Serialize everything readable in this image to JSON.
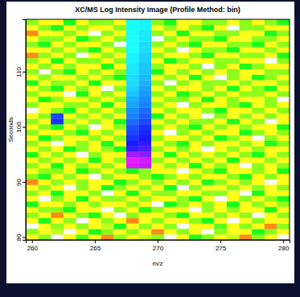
{
  "chart_data": {
    "type": "heatmap",
    "title": "XC/MS Log Intensity Image (Profile Method: bin)",
    "x_label": "m/z",
    "y_label": "Seconds",
    "x": [
      260,
      261,
      262,
      263,
      264,
      265,
      266,
      267,
      268,
      269,
      270,
      271,
      272,
      273,
      274,
      275,
      276,
      277,
      278,
      279,
      280
    ],
    "y": [
      80,
      81,
      82,
      83,
      84,
      85,
      86,
      87,
      88,
      89,
      90,
      91,
      92,
      93,
      94,
      95,
      96,
      97,
      98,
      99,
      100,
      101,
      102,
      103,
      104,
      105,
      106,
      107,
      108,
      109,
      110,
      111,
      112,
      113,
      114,
      115,
      116,
      117,
      118,
      119
    ],
    "cells": [
      [
        2,
        3,
        null,
        2,
        3.5,
        2,
        1,
        3,
        2,
        2.5,
        3,
        null,
        2,
        4,
        3,
        2,
        2.5,
        1,
        3,
        2,
        null
      ],
      [
        3,
        2,
        2.5,
        null,
        2,
        4,
        3,
        2,
        3,
        2,
        1,
        2,
        3,
        2,
        null,
        3,
        2,
        2,
        4,
        3,
        2
      ],
      [
        null,
        2,
        3,
        2,
        3,
        2,
        2.5,
        4,
        2,
        3,
        2,
        3,
        null,
        2,
        2,
        3.5,
        2,
        3,
        2,
        1,
        3
      ],
      [
        2,
        4,
        2,
        3,
        null,
        2,
        3,
        2,
        1,
        2,
        3,
        2,
        2,
        3,
        4,
        2,
        null,
        2,
        3,
        2,
        2
      ],
      [
        3,
        2,
        1,
        2,
        3,
        4,
        2,
        null,
        3,
        2,
        2,
        3,
        4,
        2,
        2,
        3,
        2,
        3,
        null,
        2,
        3
      ],
      [
        2,
        3,
        3,
        4,
        2,
        2,
        null,
        3,
        2,
        4,
        3,
        2,
        2,
        null,
        3,
        2,
        3,
        2,
        2,
        4,
        2
      ],
      [
        4,
        2,
        2,
        3,
        2,
        3,
        2,
        2,
        3,
        2,
        null,
        4,
        3,
        2,
        3,
        2,
        4,
        2,
        3,
        2,
        3
      ],
      [
        2,
        null,
        3,
        2,
        4,
        2,
        3,
        3,
        2,
        3,
        2,
        2,
        3,
        4,
        2,
        null,
        2,
        3,
        2,
        3,
        4
      ],
      [
        3,
        2,
        4,
        2,
        2,
        3,
        null,
        2,
        4,
        2,
        3,
        3,
        2,
        2,
        3,
        3,
        2,
        null,
        4,
        2,
        2
      ],
      [
        2,
        3,
        2,
        null,
        3,
        2,
        4,
        3,
        2,
        3,
        2,
        4,
        null,
        3,
        2,
        2,
        3,
        2,
        3,
        2,
        3
      ],
      [
        1,
        2,
        3,
        2,
        3,
        2,
        2,
        4,
        3,
        2,
        3,
        2,
        3,
        2,
        4,
        3,
        2,
        3,
        2,
        null,
        2
      ],
      [
        3,
        4,
        2,
        3,
        2,
        null,
        3,
        2,
        2,
        3,
        4,
        3,
        2,
        3,
        2,
        2,
        3,
        4,
        2,
        3,
        2
      ],
      [
        2,
        3,
        3,
        2,
        4,
        3,
        2,
        3,
        4,
        3,
        2,
        2,
        null,
        2,
        3,
        4,
        2,
        2,
        3,
        2,
        4
      ],
      [
        3,
        2,
        4,
        2,
        3,
        2,
        3,
        2,
        9.7,
        9.5,
        2,
        3,
        2,
        4,
        2,
        3,
        2,
        null,
        3,
        2,
        3
      ],
      [
        2,
        3,
        2,
        3,
        2,
        4,
        2,
        3,
        9.8,
        9.6,
        3,
        2,
        3,
        2,
        3,
        2,
        4,
        2,
        2,
        3,
        2
      ],
      [
        4,
        2,
        3,
        2,
        null,
        3,
        2,
        2,
        9.2,
        9.0,
        2,
        4,
        2,
        3,
        2,
        3,
        2,
        3,
        4,
        2,
        3
      ],
      [
        2,
        3,
        2,
        4,
        3,
        2,
        3,
        4,
        8.3,
        8.5,
        3,
        2,
        3,
        2,
        null,
        2,
        3,
        2,
        3,
        2,
        2
      ],
      [
        3,
        2,
        null,
        2,
        3,
        2,
        4,
        2,
        8.0,
        8.2,
        2,
        3,
        4,
        2,
        3,
        2,
        2,
        3,
        2,
        4,
        3
      ],
      [
        2,
        4,
        3,
        2,
        2,
        3,
        2,
        3,
        7.8,
        8.0,
        3,
        2,
        2,
        3,
        2,
        4,
        3,
        2,
        null,
        3,
        2
      ],
      [
        3,
        2,
        2,
        3,
        4,
        2,
        3,
        2,
        7.6,
        7.9,
        2,
        null,
        3,
        2,
        3,
        2,
        2,
        4,
        3,
        2,
        3
      ],
      [
        2,
        3,
        4,
        2,
        3,
        null,
        2,
        3,
        7.5,
        7.8,
        3,
        2,
        3,
        4,
        2,
        3,
        2,
        3,
        2,
        2,
        4
      ],
      [
        3,
        2,
        7.8,
        3,
        2,
        3,
        2,
        4,
        7.3,
        7.6,
        2,
        3,
        2,
        3,
        3,
        2,
        4,
        2,
        3,
        null,
        2
      ],
      [
        2,
        3,
        7.6,
        2,
        3,
        2,
        3,
        2,
        7.1,
        7.4,
        4,
        2,
        3,
        2,
        null,
        3,
        2,
        3,
        2,
        3,
        2
      ],
      [
        null,
        2,
        3,
        4,
        2,
        3,
        2,
        3,
        7.0,
        7.3,
        2,
        3,
        2,
        2,
        3,
        4,
        2,
        2,
        3,
        2,
        3
      ],
      [
        3,
        2,
        2,
        3,
        3,
        2,
        4,
        2,
        6.8,
        7.1,
        3,
        2,
        null,
        3,
        2,
        2,
        3,
        4,
        2,
        3,
        2
      ],
      [
        2,
        4,
        3,
        2,
        2,
        3,
        2,
        3,
        6.7,
        7.0,
        2,
        3,
        3,
        2,
        4,
        2,
        3,
        2,
        2,
        3,
        null
      ],
      [
        3,
        2,
        2,
        null,
        4,
        2,
        3,
        2,
        6.5,
        6.9,
        3,
        2,
        4,
        3,
        2,
        3,
        2,
        3,
        3,
        2,
        3
      ],
      [
        2,
        3,
        4,
        2,
        3,
        2,
        null,
        3,
        6.4,
        6.8,
        2,
        3,
        2,
        2,
        3,
        2,
        4,
        2,
        3,
        4,
        2
      ],
      [
        4,
        2,
        3,
        3,
        2,
        4,
        2,
        2,
        6.3,
        6.7,
        3,
        null,
        3,
        2,
        3,
        3,
        2,
        3,
        2,
        2,
        3
      ],
      [
        2,
        3,
        2,
        2,
        3,
        2,
        3,
        4,
        6.3,
        6.6,
        2,
        3,
        2,
        4,
        2,
        null,
        3,
        2,
        4,
        3,
        2
      ],
      [
        3,
        null,
        3,
        4,
        2,
        3,
        2,
        3,
        6.2,
        6.5,
        4,
        2,
        3,
        2,
        3,
        2,
        3,
        2,
        2,
        3,
        3
      ],
      [
        2,
        3,
        2,
        3,
        2,
        2,
        4,
        2,
        6.2,
        6.5,
        3,
        2,
        2,
        3,
        null,
        3,
        2,
        4,
        3,
        2,
        2
      ],
      [
        3,
        2,
        4,
        2,
        3,
        3,
        2,
        3,
        6.1,
        6.4,
        2,
        4,
        3,
        2,
        2,
        3,
        3,
        2,
        2,
        null,
        3
      ],
      [
        1,
        3,
        2,
        3,
        null,
        2,
        3,
        2,
        6.1,
        6.4,
        3,
        2,
        2,
        3,
        4,
        2,
        2,
        3,
        3,
        2,
        4
      ],
      [
        2,
        2,
        3,
        2,
        3,
        4,
        2,
        3,
        6.0,
        6.3,
        2,
        3,
        null,
        2,
        3,
        3,
        4,
        2,
        2,
        3,
        2
      ],
      [
        3,
        4,
        2,
        3,
        2,
        2,
        3,
        null,
        6.0,
        6.3,
        3,
        2,
        3,
        4,
        2,
        2,
        3,
        3,
        4,
        2,
        3
      ],
      [
        2,
        3,
        3,
        2,
        4,
        3,
        2,
        3,
        6.0,
        6.2,
        null,
        3,
        2,
        3,
        3,
        4,
        2,
        2,
        3,
        3,
        2
      ],
      [
        1,
        2,
        2,
        3,
        2,
        null,
        3,
        2,
        5.9,
        6.2,
        3,
        2,
        4,
        2,
        2,
        3,
        3,
        2,
        2,
        4,
        3
      ],
      [
        2,
        3,
        4,
        2,
        3,
        2,
        2,
        3,
        5.9,
        6.1,
        2,
        3,
        2,
        3,
        4,
        2,
        null,
        3,
        3,
        2,
        2
      ],
      [
        3,
        2,
        2,
        4,
        2,
        3,
        3,
        2,
        5.9,
        6.1,
        3,
        4,
        2,
        2,
        3,
        3,
        2,
        3,
        2,
        3,
        4
      ]
    ],
    "xlim": [
      259.5,
      280.5
    ],
    "ylim": [
      79.5,
      119.5
    ],
    "xticks": [
      260,
      265,
      270,
      275,
      280
    ],
    "yticks": [
      80,
      90,
      100,
      110
    ],
    "zlim": [
      0,
      10
    ]
  }
}
